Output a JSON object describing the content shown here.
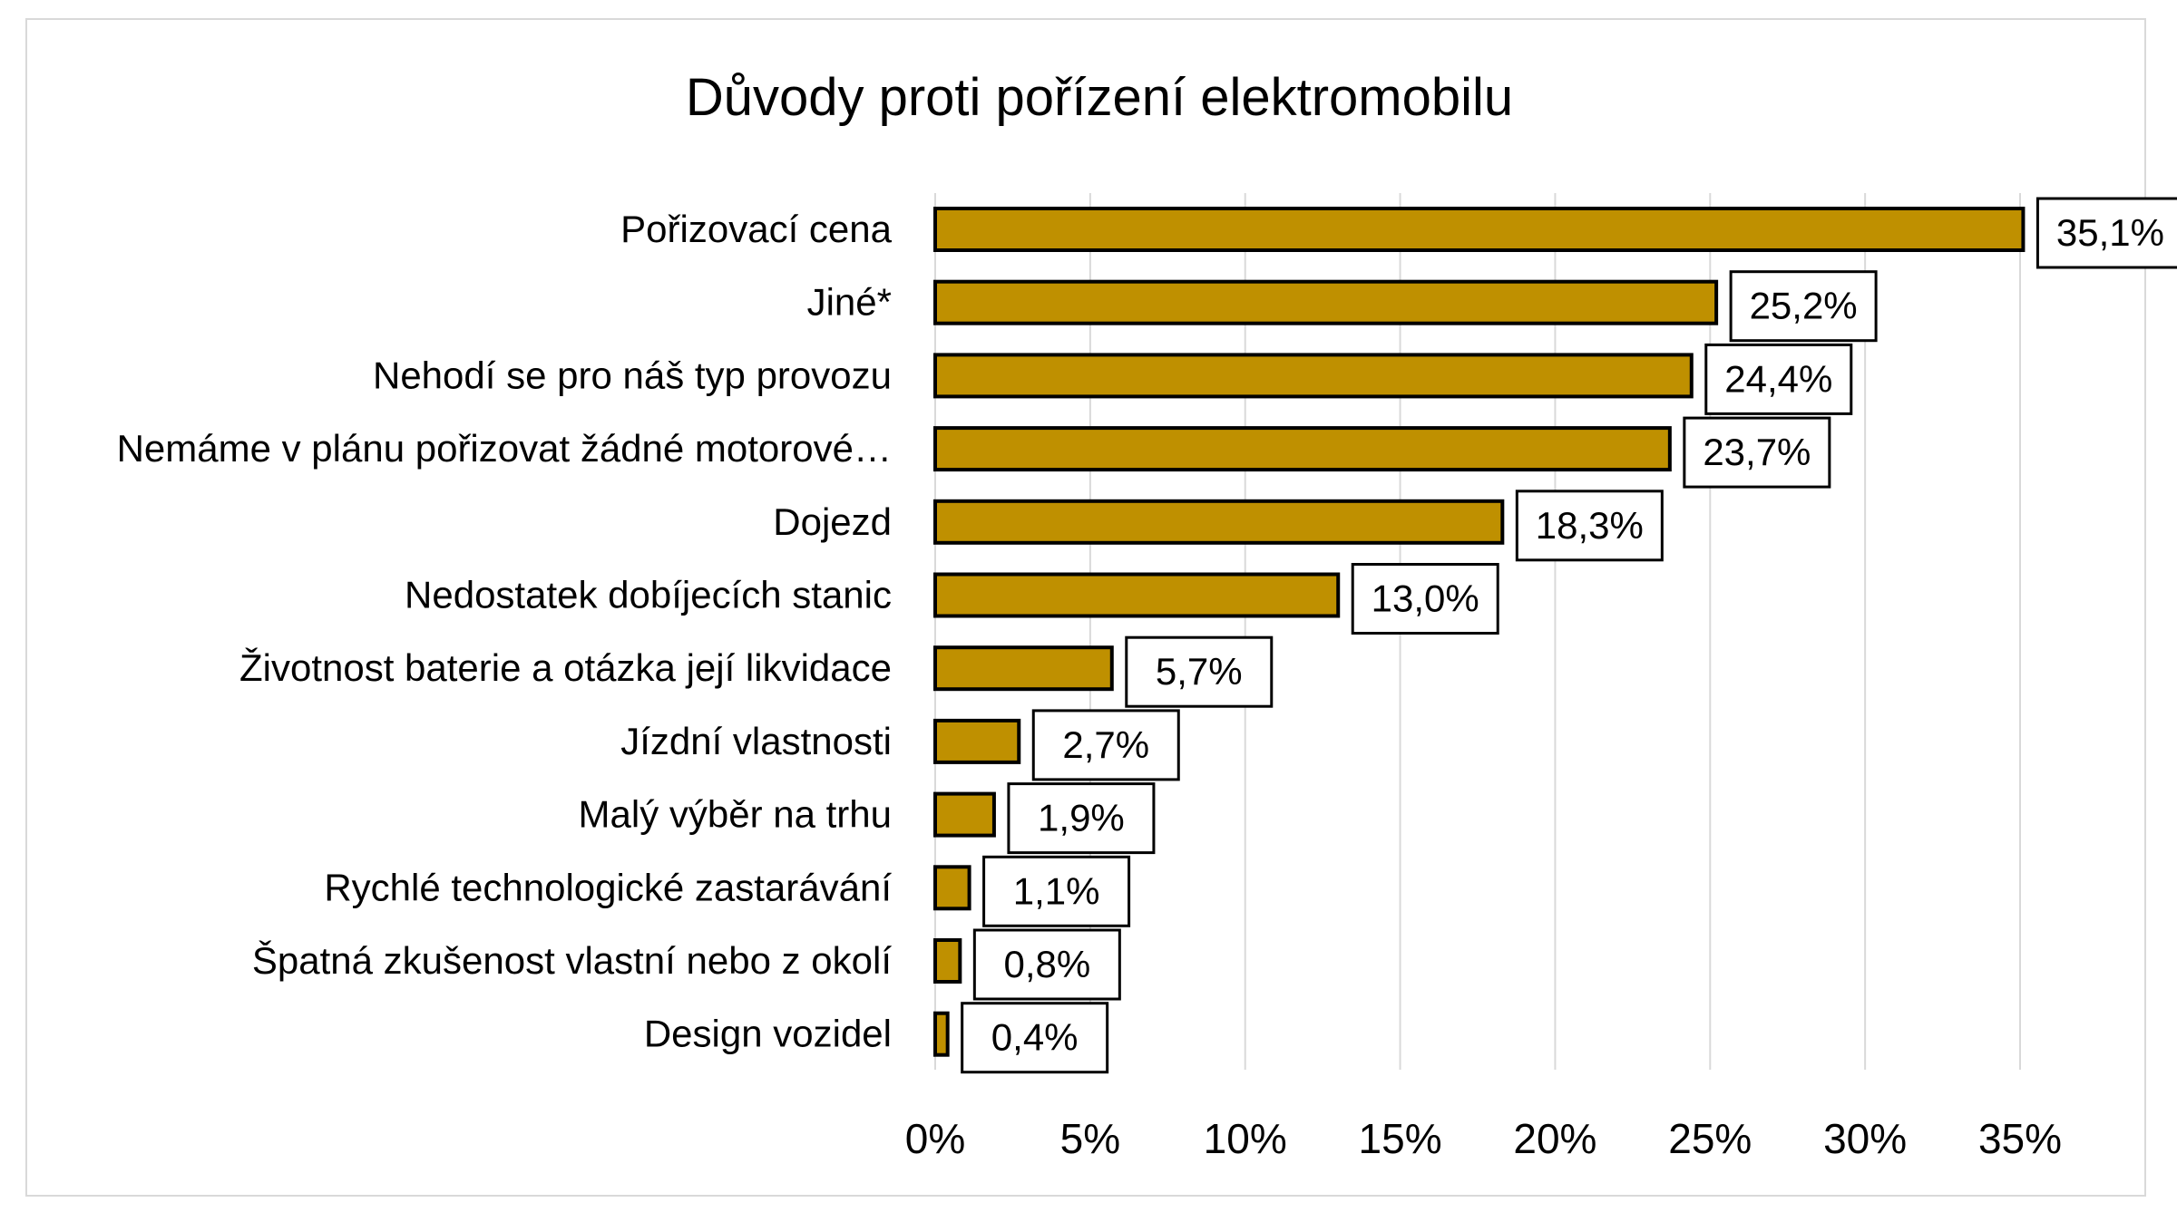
{
  "chart_data": {
    "type": "bar",
    "orientation": "horizontal",
    "title": "Důvody proti pořízení elektromobilu",
    "xlabel": "",
    "ylabel": "",
    "categories": [
      "Pořizovací cena",
      "Jiné*",
      "Nehodí se pro náš typ provozu",
      "Nemáme v plánu pořizovat žádné motorové…",
      "Dojezd",
      "Nedostatek dobíjecích stanic",
      "Životnost baterie a otázka její likvidace",
      "Jízdní vlastnosti",
      "Malý výběr na trhu",
      "Rychlé technologické zastarávání",
      "Špatná zkušenost vlastní nebo z okolí",
      "Design vozidel"
    ],
    "values": [
      35.1,
      25.2,
      24.4,
      23.7,
      18.3,
      13.0,
      5.7,
      2.7,
      1.9,
      1.1,
      0.8,
      0.4
    ],
    "data_labels": [
      "35,1%",
      "25,2%",
      "24,4%",
      "23,7%",
      "18,3%",
      "13,0%",
      "5,7%",
      "2,7%",
      "1,9%",
      "1,1%",
      "0,8%",
      "0,4%"
    ],
    "xlim": [
      0,
      35
    ],
    "x_ticks": [
      "0%",
      "5%",
      "10%",
      "15%",
      "20%",
      "25%",
      "30%",
      "35%"
    ],
    "grid": "vertical",
    "legend": "none",
    "bar_color": "#BF9000",
    "bar_outline": "#000000",
    "gridline_color": "#D9D9D9"
  }
}
